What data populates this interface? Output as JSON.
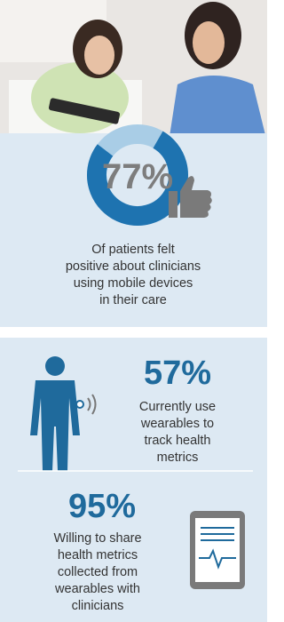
{
  "patients": {
    "stat": {
      "value": 77,
      "label": "77%"
    },
    "text": [
      "Of patients felt",
      "positive about clinicians",
      "using mobile devices",
      "in their care"
    ]
  },
  "wearables_use": {
    "stat": {
      "value": 57,
      "label": "57%"
    },
    "text": [
      "Currently use",
      "wearables to",
      "track health",
      "metrics"
    ]
  },
  "share_metrics": {
    "stat": {
      "value": 95,
      "label": "95%"
    },
    "text": [
      "Willing to share",
      "health metrics",
      "collected from",
      "wearables with",
      "clinicians"
    ]
  }
}
